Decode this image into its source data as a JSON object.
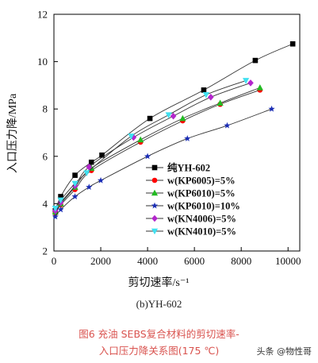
{
  "chart_data": {
    "type": "line",
    "xlabel": "剪切速率/s⁻¹",
    "ylabel": "入口压力降/MPa",
    "xlim": [
      0,
      10500
    ],
    "ylim": [
      2,
      12
    ],
    "xticks": [
      0,
      2000,
      4000,
      6000,
      8000,
      10000
    ],
    "yticks": [
      2,
      4,
      6,
      8,
      10,
      12
    ],
    "xtick_labels": [
      "0",
      "2000",
      "4000",
      "6000",
      "8000",
      "10000"
    ],
    "ytick_labels": [
      "2",
      "4",
      "6",
      "8",
      "10",
      "12"
    ],
    "legend_position": "bottom-center",
    "series": [
      {
        "name": "纯YH-602",
        "marker": "square",
        "color": "#000000",
        "x": [
          60,
          290,
          900,
          1600,
          2050,
          4100,
          6400,
          8600,
          10200
        ],
        "y": [
          3.7,
          4.3,
          5.2,
          5.75,
          6.05,
          7.6,
          8.8,
          10.05,
          10.75
        ]
      },
      {
        "name": "w(KP6005)=5%",
        "marker": "circle",
        "color": "#ff0000",
        "x": [
          60,
          290,
          900,
          1600,
          3700,
          5500,
          7100,
          8800
        ],
        "y": [
          3.6,
          3.95,
          4.6,
          5.4,
          6.6,
          7.5,
          8.2,
          8.8
        ]
      },
      {
        "name": "w(KP6010)=5%",
        "marker": "triangle",
        "color": "#22bb22",
        "x": [
          60,
          290,
          900,
          1600,
          3700,
          5500,
          7100,
          8800
        ],
        "y": [
          3.65,
          4.0,
          4.7,
          5.5,
          6.7,
          7.6,
          8.25,
          8.9
        ]
      },
      {
        "name": "w(KP6010)=10%",
        "marker": "star",
        "color": "#1a2db5",
        "x": [
          60,
          290,
          900,
          1500,
          2000,
          4000,
          5700,
          7400,
          9300
        ],
        "y": [
          3.45,
          3.75,
          4.3,
          4.7,
          4.98,
          6.0,
          6.75,
          7.3,
          8.0
        ]
      },
      {
        "name": "w(KN4006)=5%",
        "marker": "diamond",
        "color": "#b326cc",
        "x": [
          60,
          290,
          900,
          1500,
          3400,
          5100,
          6700,
          8400
        ],
        "y": [
          3.7,
          4.05,
          4.75,
          5.55,
          6.8,
          7.7,
          8.5,
          9.1
        ]
      },
      {
        "name": "w(KN4010)=5%",
        "marker": "triangle-down",
        "color": "#40e0f0",
        "x": [
          60,
          290,
          900,
          1400,
          3300,
          4900,
          6500,
          8200
        ],
        "y": [
          3.8,
          4.15,
          4.85,
          5.3,
          6.85,
          7.75,
          8.6,
          9.2
        ]
      }
    ]
  },
  "figure": {
    "subtitle": "(b)YH-602",
    "caption_line1": "图6  充油 SEBS复合材料的剪切速率-",
    "caption_line2": "入口压力降关系图(175 ℃)",
    "watermark": "头条 @物性哥"
  }
}
